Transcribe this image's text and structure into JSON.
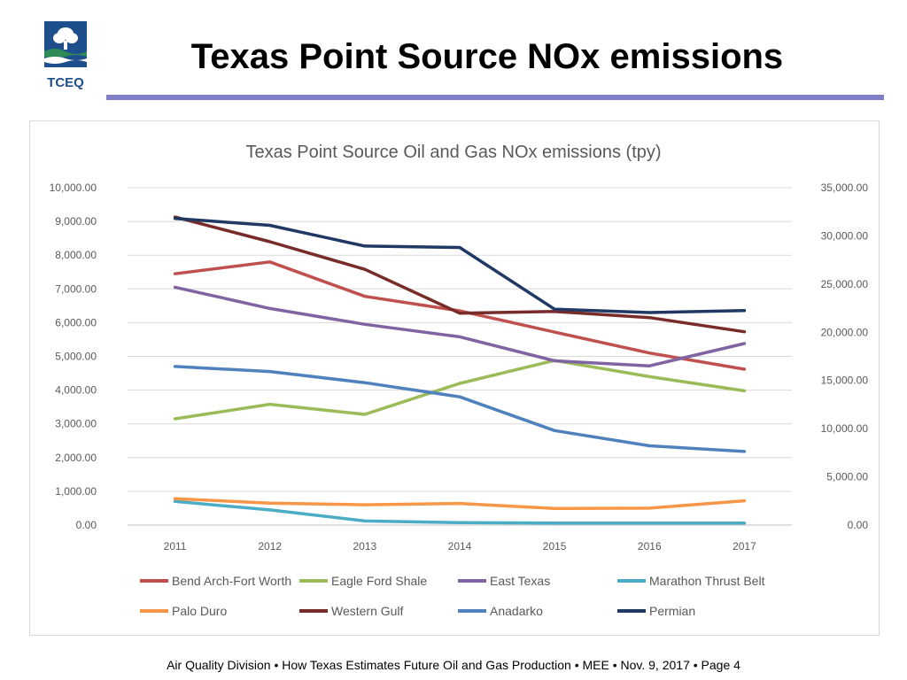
{
  "slide": {
    "title": "Texas Point Source NOx emissions",
    "logo_text": "TCEQ",
    "footer": "Air Quality Division • How Texas Estimates Future Oil and Gas Production  • MEE •  Nov. 9, 2017  •   Page 4"
  },
  "colors": {
    "title_rule": "#7f7fc8",
    "logo_blue": "#1f4e8c",
    "logo_green": "#2e8b57"
  },
  "chart_data": {
    "type": "line",
    "title": "Texas Point Source Oil and Gas NOx emissions (tpy)",
    "categories": [
      "2011",
      "2012",
      "2013",
      "2014",
      "2015",
      "2016",
      "2017"
    ],
    "y_left": {
      "min": 0,
      "max": 10000,
      "ticks": [
        "0.00",
        "1,000.00",
        "2,000.00",
        "3,000.00",
        "4,000.00",
        "5,000.00",
        "6,000.00",
        "7,000.00",
        "8,000.00",
        "9,000.00",
        "10,000.00"
      ]
    },
    "y_right": {
      "min": 0,
      "max": 35000,
      "ticks": [
        "0.00",
        "5,000.00",
        "10,000.00",
        "15,000.00",
        "20,000.00",
        "25,000.00",
        "30,000.00",
        "35,000.00"
      ]
    },
    "grid": true,
    "legend_position": "bottom",
    "series": [
      {
        "name": "Bend Arch-Fort Worth",
        "color": "#c0504d",
        "axis": "left",
        "values": [
          7450,
          7800,
          6780,
          6350,
          5720,
          5100,
          4620
        ]
      },
      {
        "name": "Eagle Ford Shale",
        "color": "#9bbb59",
        "axis": "left",
        "values": [
          3150,
          3580,
          3280,
          4200,
          4880,
          4400,
          3980
        ]
      },
      {
        "name": "East Texas",
        "color": "#8064a2",
        "axis": "left",
        "values": [
          7050,
          6420,
          5950,
          5580,
          4870,
          4720,
          5380
        ]
      },
      {
        "name": "Marathon Thrust Belt",
        "color": "#4bacc6",
        "axis": "left",
        "values": [
          700,
          450,
          120,
          70,
          60,
          60,
          60
        ]
      },
      {
        "name": "Palo Duro",
        "color": "#f79646",
        "axis": "left",
        "values": [
          780,
          650,
          600,
          640,
          490,
          500,
          720
        ]
      },
      {
        "name": "Western Gulf",
        "color": "#772c2a",
        "axis": "left",
        "values": [
          9130,
          8400,
          7580,
          6280,
          6330,
          6150,
          5730
        ]
      },
      {
        "name": "Anadarko",
        "color": "#4f81bd",
        "axis": "left",
        "values": [
          4700,
          4550,
          4220,
          3800,
          2800,
          2350,
          2180
        ]
      },
      {
        "name": "Permian",
        "color": "#1f3864",
        "axis": "right",
        "values": [
          31800,
          31100,
          28950,
          28800,
          22400,
          22050,
          22250
        ]
      }
    ]
  }
}
